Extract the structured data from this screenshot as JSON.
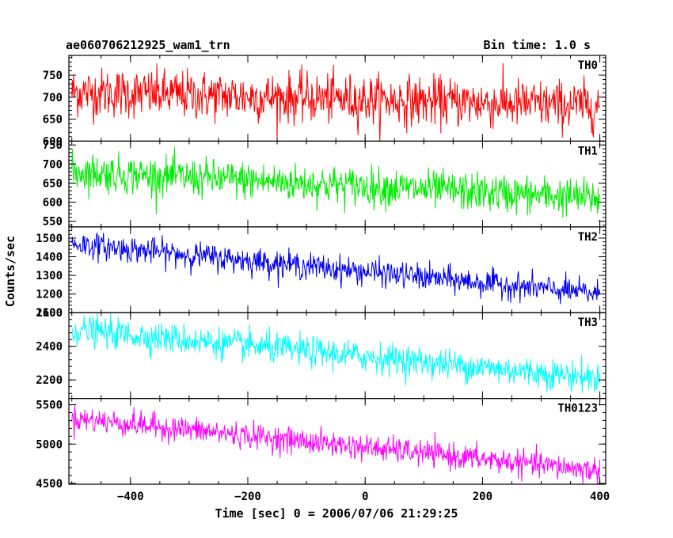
{
  "title_left": "ae060706212925_wam1_trn",
  "title_right": "Bin time: 1.0 s",
  "chart_data": {
    "type": "line",
    "xlabel": "Time [sec] 0 = 2006/07/06 21:29:25",
    "ylabel": "Counts/sec",
    "xlim": [
      -505,
      410
    ],
    "x_range": [
      -500,
      400
    ],
    "x_ticks": [
      -400,
      -200,
      0,
      200,
      400
    ],
    "grid": false,
    "panels": [
      {
        "name": "TH0",
        "color": "#ff0000",
        "ylim": [
          600,
          795
        ],
        "y_ticks": [
          600,
          650,
          700,
          750
        ],
        "y_tick_labels": [
          "600",
          "650",
          "700",
          "750"
        ],
        "trend": [
          712,
          680
        ],
        "noise_sd": 28
      },
      {
        "name": "TH1",
        "color": "#00ee00",
        "ylim": [
          535,
          760
        ],
        "y_ticks": [
          550,
          600,
          650,
          700,
          750
        ],
        "y_tick_labels": [
          "550",
          "600",
          "650",
          "700",
          "750"
        ],
        "trend": [
          680,
          610
        ],
        "noise_sd": 25
      },
      {
        "name": "TH2",
        "color": "#0000ee",
        "ylim": [
          1100,
          1560
        ],
        "y_ticks": [
          1100,
          1200,
          1300,
          1400,
          1500
        ],
        "y_tick_labels": [
          "1100",
          "1200",
          "1300",
          "1400",
          "1500"
        ],
        "trend": [
          1470,
          1200
        ],
        "noise_sd": 35
      },
      {
        "name": "TH3",
        "color": "#00ffff",
        "ylim": [
          2090,
          2600
        ],
        "y_ticks": [
          2200,
          2400,
          2600
        ],
        "y_tick_labels": [
          "2200",
          "2400",
          "2600"
        ],
        "trend": [
          2500,
          2210
        ],
        "noise_sd": 45
      },
      {
        "name": "TH0123",
        "color": "#ff00ff",
        "ylim": [
          4490,
          5580
        ],
        "y_ticks": [
          4500,
          5000,
          5500
        ],
        "y_tick_labels": [
          "4500",
          "5000",
          "5500"
        ],
        "trend": [
          5330,
          4660
        ],
        "noise_sd": 80
      }
    ]
  }
}
